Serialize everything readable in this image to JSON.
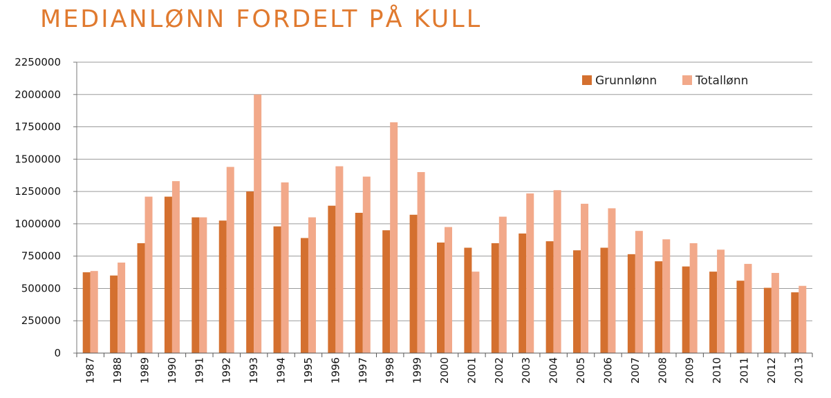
{
  "chart_data": {
    "type": "bar",
    "title": "MEDIANLØNN FORDELT PÅ KULL",
    "xlabel": "",
    "ylabel": "",
    "categories": [
      "1987",
      "1988",
      "1989",
      "1990",
      "1991",
      "1992",
      "1993",
      "1994",
      "1995",
      "1996",
      "1997",
      "1998",
      "1999",
      "2000",
      "2001",
      "2002",
      "2003",
      "2004",
      "2005",
      "2006",
      "2007",
      "2008",
      "2009",
      "2010",
      "2011",
      "2012",
      "2013"
    ],
    "series": [
      {
        "name": "Grunnlønn",
        "color": "#D4702F",
        "values": [
          625000,
          600000,
          850000,
          1210000,
          1050000,
          1025000,
          1250000,
          980000,
          890000,
          1140000,
          1085000,
          950000,
          1070000,
          855000,
          815000,
          850000,
          925000,
          865000,
          795000,
          815000,
          765000,
          710000,
          670000,
          630000,
          560000,
          505000,
          470000
        ]
      },
      {
        "name": "Totallønn",
        "color": "#F2A98A",
        "values": [
          635000,
          700000,
          1210000,
          1330000,
          1050000,
          1440000,
          2000000,
          1320000,
          1050000,
          1445000,
          1365000,
          1785000,
          1400000,
          975000,
          630000,
          1055000,
          1235000,
          1260000,
          1155000,
          1120000,
          945000,
          880000,
          850000,
          800000,
          690000,
          620000,
          520000
        ]
      }
    ],
    "ylim": [
      0,
      2250000
    ],
    "yticks": [
      "0",
      "250000",
      "500000",
      "750000",
      "1000000",
      "1250000",
      "1500000",
      "1750000",
      "2000000",
      "2250000"
    ],
    "grid": true,
    "legend_position": "top-right"
  }
}
